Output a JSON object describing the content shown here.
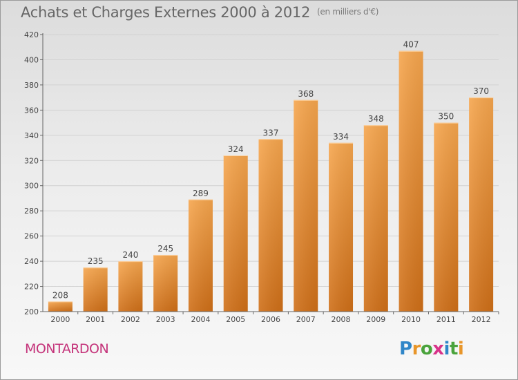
{
  "title": "Achats et Charges Externes 2000 à 2012",
  "unit": "(en milliers d'€)",
  "location": "MONTARDON",
  "logo": {
    "text": "Proxiti",
    "letters": [
      {
        "ch": "P",
        "color": "#2f86c8"
      },
      {
        "ch": "r",
        "color": "#e8962a"
      },
      {
        "ch": "o",
        "color": "#4aa33c"
      },
      {
        "ch": "x",
        "color": "#d8338a"
      },
      {
        "ch": "i",
        "color": "#2f86c8"
      },
      {
        "ch": "t",
        "color": "#4aa33c"
      },
      {
        "ch": "i",
        "color": "#e8962a"
      }
    ]
  },
  "colors": {
    "bar_top": "#f6a64e",
    "bar_bottom": "#cf6f18",
    "grid": "#d2d2d2",
    "axis": "#666666",
    "text": "#444444"
  },
  "chart_data": {
    "type": "bar",
    "categories": [
      "2000",
      "2001",
      "2002",
      "2003",
      "2004",
      "2005",
      "2006",
      "2007",
      "2008",
      "2009",
      "2010",
      "2011",
      "2012"
    ],
    "values": [
      208,
      235,
      240,
      245,
      289,
      324,
      337,
      368,
      334,
      348,
      407,
      350,
      370
    ],
    "title": "Achats et Charges Externes 2000 à 2012",
    "xlabel": "",
    "ylabel": "",
    "ylim": [
      200,
      420
    ],
    "yticks": [
      200,
      220,
      240,
      260,
      280,
      300,
      320,
      340,
      360,
      380,
      400,
      420
    ],
    "grid": true,
    "data_labels": true
  }
}
